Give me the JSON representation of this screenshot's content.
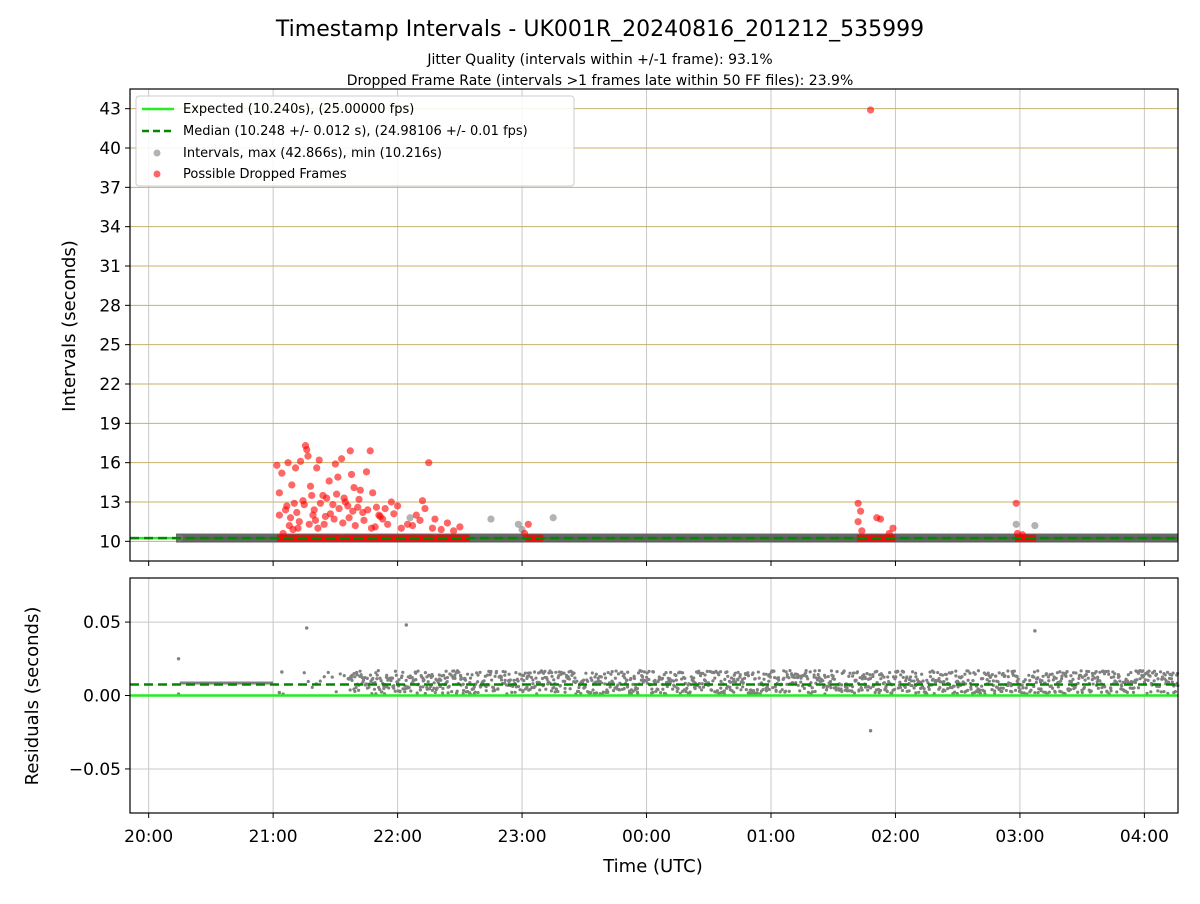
{
  "title": "Timestamp Intervals - UK001R_20240816_201212_535999",
  "subtitle_1": "Jitter Quality (intervals within +/-1 frame): 93.1%",
  "subtitle_2": "Dropped Frame Rate (intervals >1 frames late within 50 FF files): 23.9%",
  "colors": {
    "expected": "#22ee22",
    "median": "#008800",
    "intervals": "#808080",
    "dropped": "#ff0000",
    "hgrid_top": "#c8b26a",
    "vgrid": "#c8c8c8",
    "band": "#555555"
  },
  "chart_data": [
    {
      "type": "scatter",
      "ylabel": "Intervals (seconds)",
      "ylim": [
        8.5,
        44.5
      ],
      "yticks": [
        10,
        13,
        16,
        19,
        22,
        25,
        28,
        31,
        34,
        37,
        40,
        43
      ],
      "xlim_hours": [
        19.85,
        28.27
      ],
      "grid": true,
      "legend": {
        "placement": "top-left",
        "entries": [
          {
            "key": "expected",
            "label": "Expected (10.240s), (25.00000 fps)"
          },
          {
            "key": "median",
            "label": "Median (10.248 +/- 0.012 s), (24.98106 +/- 0.01 fps)"
          },
          {
            "key": "intervals",
            "label": "Intervals, max (42.866s), min (10.216s)"
          },
          {
            "key": "dropped",
            "label": "Possible Dropped Frames"
          }
        ]
      },
      "expected_value": 10.24,
      "median_value": 10.248,
      "series": [
        {
          "name": "Intervals, max (42.866s), min (10.216s)",
          "points": [
            [
              22.1,
              11.8
            ],
            [
              22.75,
              11.7
            ],
            [
              22.97,
              11.3
            ],
            [
              23.25,
              11.8
            ],
            [
              23.0,
              10.9
            ],
            [
              26.97,
              11.3
            ],
            [
              27.12,
              11.2
            ],
            [
              20.25,
              10.24
            ],
            [
              21.55,
              10.3
            ],
            [
              22.3,
              10.3
            ]
          ],
          "band": {
            "x_start": 20.22,
            "x_end": 28.27,
            "y": 10.25
          }
        },
        {
          "name": "Possible Dropped Frames",
          "points": [
            [
              21.03,
              15.8
            ],
            [
              21.05,
              13.7
            ],
            [
              21.07,
              15.2
            ],
            [
              21.1,
              12.4
            ],
            [
              21.12,
              16.0
            ],
            [
              21.13,
              11.2
            ],
            [
              21.15,
              14.3
            ],
            [
              21.17,
              12.9
            ],
            [
              21.18,
              15.6
            ],
            [
              21.2,
              11.0
            ],
            [
              21.22,
              16.1
            ],
            [
              21.24,
              13.1
            ],
            [
              21.26,
              17.3
            ],
            [
              21.27,
              17.0
            ],
            [
              21.28,
              16.5
            ],
            [
              21.3,
              14.2
            ],
            [
              21.32,
              12.0
            ],
            [
              21.34,
              11.6
            ],
            [
              21.35,
              15.6
            ],
            [
              21.37,
              16.2
            ],
            [
              21.4,
              13.5
            ],
            [
              21.42,
              11.9
            ],
            [
              21.45,
              14.6
            ],
            [
              21.48,
              12.8
            ],
            [
              21.5,
              15.9
            ],
            [
              21.52,
              14.9
            ],
            [
              21.55,
              16.3
            ],
            [
              21.57,
              13.3
            ],
            [
              21.6,
              12.7
            ],
            [
              21.62,
              16.9
            ],
            [
              21.63,
              15.1
            ],
            [
              21.65,
              14.1
            ],
            [
              21.68,
              12.6
            ],
            [
              21.7,
              13.9
            ],
            [
              21.72,
              12.2
            ],
            [
              21.75,
              15.3
            ],
            [
              21.78,
              16.9
            ],
            [
              21.8,
              13.7
            ],
            [
              21.82,
              11.1
            ],
            [
              21.85,
              12.0
            ],
            [
              21.88,
              11.7
            ],
            [
              21.9,
              12.5
            ],
            [
              21.92,
              11.3
            ],
            [
              21.95,
              13.0
            ],
            [
              21.97,
              12.1
            ],
            [
              22.0,
              12.7
            ],
            [
              22.03,
              11.0
            ],
            [
              22.08,
              11.3
            ],
            [
              22.15,
              12.0
            ],
            [
              22.18,
              11.6
            ],
            [
              22.2,
              13.1
            ],
            [
              22.22,
              12.5
            ],
            [
              22.25,
              16.0
            ],
            [
              22.28,
              11.0
            ],
            [
              22.3,
              11.7
            ],
            [
              22.4,
              11.4
            ],
            [
              22.45,
              10.8
            ],
            [
              22.5,
              11.1
            ],
            [
              21.05,
              12.0
            ],
            [
              21.08,
              10.6
            ],
            [
              21.11,
              12.7
            ],
            [
              21.14,
              11.8
            ],
            [
              21.16,
              10.9
            ],
            [
              21.19,
              12.2
            ],
            [
              21.21,
              11.5
            ],
            [
              21.25,
              12.8
            ],
            [
              21.29,
              11.3
            ],
            [
              21.31,
              13.5
            ],
            [
              21.33,
              12.4
            ],
            [
              21.36,
              11.0
            ],
            [
              21.38,
              12.9
            ],
            [
              21.41,
              11.3
            ],
            [
              21.43,
              13.3
            ],
            [
              21.46,
              12.1
            ],
            [
              21.49,
              11.7
            ],
            [
              21.51,
              13.6
            ],
            [
              21.53,
              12.5
            ],
            [
              21.56,
              11.4
            ],
            [
              21.58,
              13.0
            ],
            [
              21.61,
              11.8
            ],
            [
              21.64,
              12.3
            ],
            [
              21.66,
              11.2
            ],
            [
              21.69,
              13.2
            ],
            [
              21.73,
              11.6
            ],
            [
              21.76,
              12.4
            ],
            [
              21.79,
              11.0
            ],
            [
              21.83,
              12.6
            ],
            [
              21.86,
              11.9
            ],
            [
              22.12,
              11.2
            ],
            [
              22.35,
              10.9
            ],
            [
              23.05,
              11.3
            ],
            [
              23.02,
              10.6
            ],
            [
              25.7,
              12.9
            ],
            [
              25.72,
              12.3
            ],
            [
              25.7,
              11.5
            ],
            [
              25.73,
              10.8
            ],
            [
              25.8,
              42.9
            ],
            [
              25.85,
              11.8
            ],
            [
              25.88,
              11.7
            ],
            [
              25.98,
              11.0
            ],
            [
              25.95,
              10.6
            ],
            [
              26.97,
              12.9
            ],
            [
              26.98,
              10.6
            ],
            [
              27.02,
              10.5
            ]
          ],
          "segments": [
            [
              21.03,
              22.58,
              10.24
            ],
            [
              23.03,
              23.17,
              10.24
            ],
            [
              25.69,
              26.0,
              10.24
            ],
            [
              26.96,
              27.13,
              10.24
            ]
          ]
        }
      ]
    },
    {
      "type": "scatter",
      "xlabel": "Time (UTC)",
      "ylabel": "Residuals (seconds)",
      "ylim": [
        -0.08,
        0.08
      ],
      "yticks": [
        -0.05,
        0.0,
        0.05
      ],
      "ytick_labels": [
        "−0.05",
        "0.00",
        "0.05"
      ],
      "xlim_hours": [
        19.85,
        28.27
      ],
      "xticks_hours": [
        20,
        21,
        22,
        23,
        24,
        25,
        26,
        27,
        28
      ],
      "xtick_labels": [
        "20:00",
        "21:00",
        "22:00",
        "23:00",
        "00:00",
        "01:00",
        "02:00",
        "03:00",
        "04:00"
      ],
      "expected_value": 0.0,
      "median_value": 0.0075,
      "series": [
        {
          "name": "Residuals",
          "outliers": [
            [
              20.24,
              0.025
            ],
            [
              20.24,
              0.001
            ],
            [
              21.07,
              0.016
            ],
            [
              21.27,
              0.046
            ],
            [
              22.07,
              0.048
            ],
            [
              25.8,
              -0.024
            ],
            [
              27.12,
              0.044
            ],
            [
              21.05,
              0.002
            ],
            [
              21.08,
              0.001
            ]
          ],
          "dense_range": {
            "x_start": 21.6,
            "x_end": 28.27,
            "y_low": 0.001,
            "y_high": 0.017
          },
          "sparse_range": {
            "x_start": 21.25,
            "x_end": 21.6,
            "y_low": 0.002,
            "y_high": 0.016
          },
          "early_band": {
            "x_start": 20.25,
            "x_end": 21.0,
            "y": 0.0085
          }
        }
      ]
    }
  ]
}
